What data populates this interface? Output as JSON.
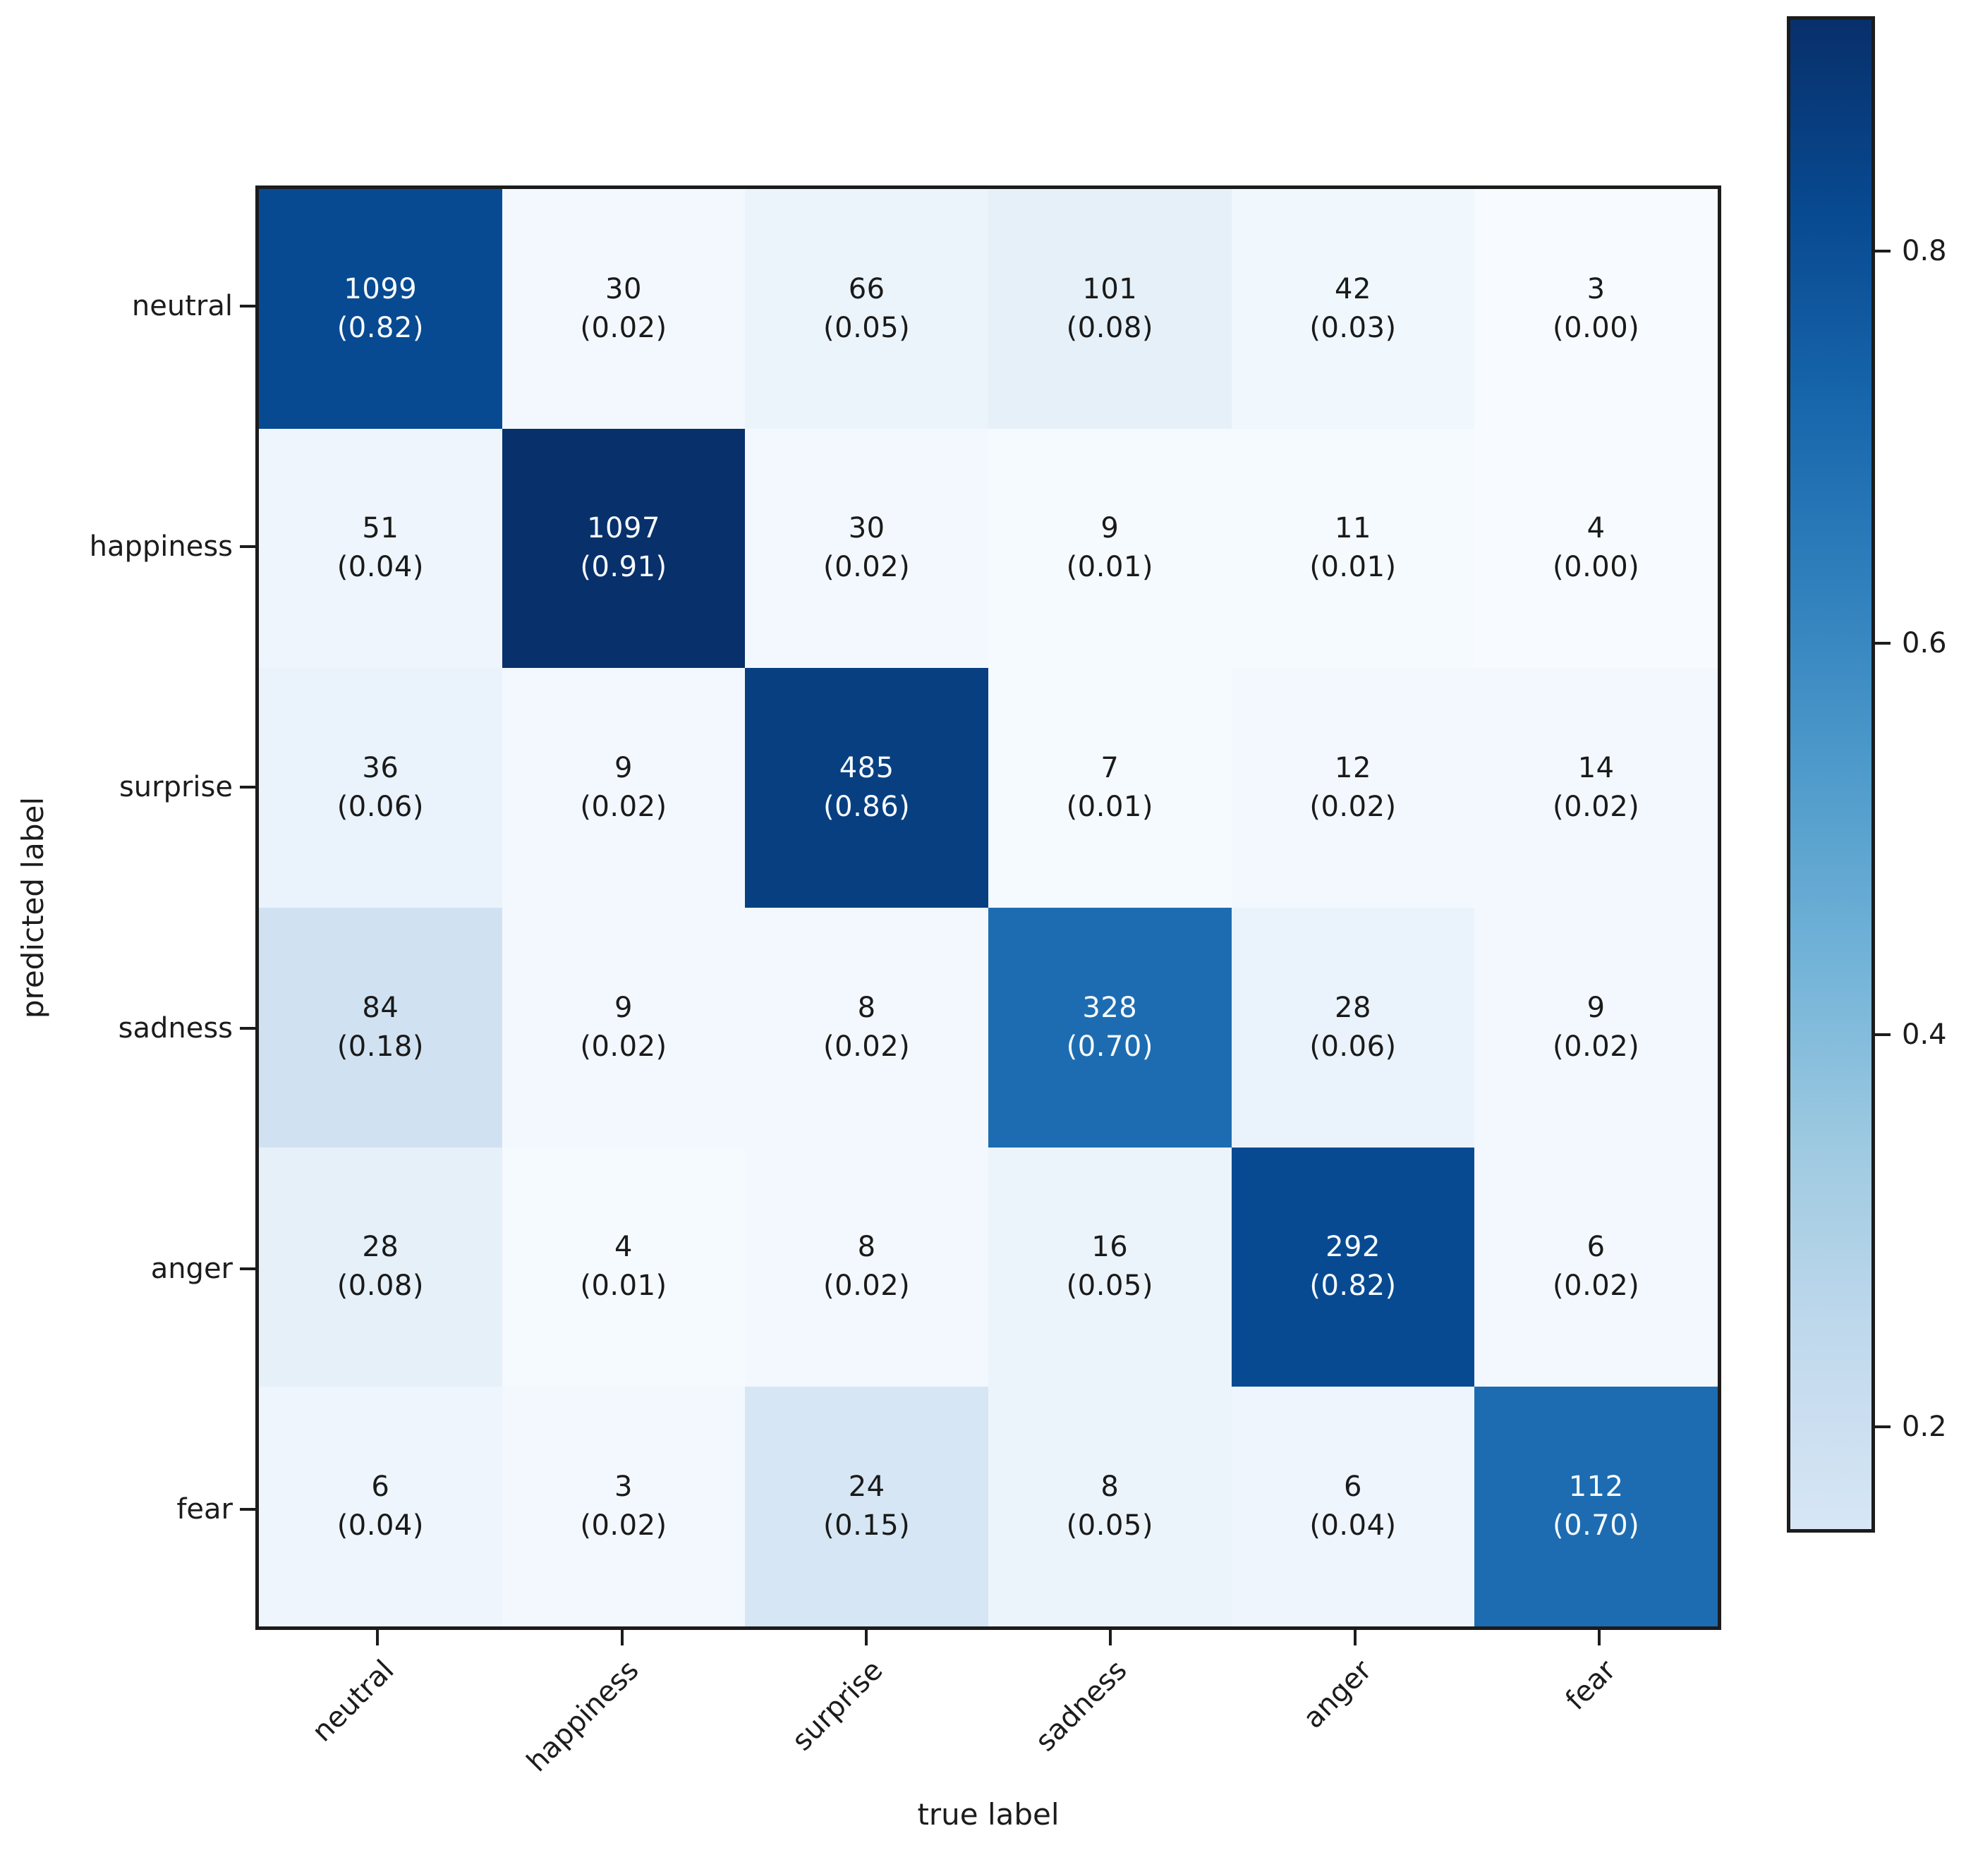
{
  "figure": {
    "background": "#ffffff"
  },
  "chart_data": {
    "type": "heatmap",
    "subtype": "confusion-matrix",
    "title": "",
    "xlabel": "true label",
    "ylabel": "predicted label",
    "x_ticklabels": [
      "neutral",
      "happiness",
      "surprise",
      "sadness",
      "anger",
      "fear"
    ],
    "y_ticklabels": [
      "neutral",
      "happiness",
      "surprise",
      "sadness",
      "anger",
      "fear"
    ],
    "counts": [
      [
        1099,
        30,
        66,
        101,
        42,
        3
      ],
      [
        51,
        1097,
        30,
        9,
        11,
        4
      ],
      [
        36,
        9,
        485,
        7,
        12,
        14
      ],
      [
        84,
        9,
        8,
        328,
        28,
        9
      ],
      [
        28,
        4,
        8,
        16,
        292,
        6
      ],
      [
        6,
        3,
        24,
        8,
        6,
        112
      ]
    ],
    "proportions": [
      [
        0.82,
        0.02,
        0.05,
        0.08,
        0.03,
        0.0
      ],
      [
        0.04,
        0.91,
        0.02,
        0.01,
        0.01,
        0.0
      ],
      [
        0.06,
        0.02,
        0.86,
        0.01,
        0.02,
        0.02
      ],
      [
        0.18,
        0.02,
        0.02,
        0.7,
        0.06,
        0.02
      ],
      [
        0.08,
        0.01,
        0.02,
        0.05,
        0.82,
        0.02
      ],
      [
        0.04,
        0.02,
        0.15,
        0.05,
        0.04,
        0.7
      ]
    ],
    "cell_label_format": "count newline (proportion to 2 decimals)",
    "colormap": "Blues",
    "color_vmax": 0.91,
    "text_switch_threshold": 0.5,
    "colorbar": {
      "tick_labels": [
        "0.8",
        "0.6",
        "0.4",
        "0.2"
      ],
      "top_value": 0.92,
      "bottom_value": 0.146
    },
    "colors": {
      "text_dark": "#1a1a1a",
      "text_light": "#f7fbff",
      "spine": "#1c1c1c",
      "darkest_cell": "#08306b",
      "lightest_cell": "#f7fbff"
    },
    "layout": {
      "grid": "off",
      "legend": "colorbar-right",
      "x_ticklabel_rotation_deg": 45
    }
  }
}
